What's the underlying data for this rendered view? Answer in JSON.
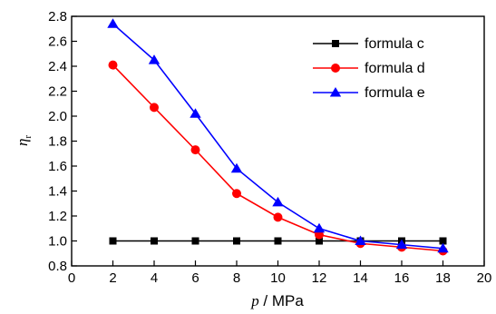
{
  "chart_data": {
    "type": "line",
    "xlabel": {
      "symbol": "p",
      "unit": " / MPa"
    },
    "ylabel": {
      "symbol": "η",
      "subscript": "r"
    },
    "xlim": [
      0,
      20
    ],
    "ylim": [
      0.8,
      2.8
    ],
    "xticks": [
      0,
      2,
      4,
      6,
      8,
      10,
      12,
      14,
      16,
      18,
      20
    ],
    "yticks": [
      "0.8",
      "1.0",
      "1.2",
      "1.4",
      "1.6",
      "1.8",
      "2.0",
      "2.2",
      "2.4",
      "2.6",
      "2.8"
    ],
    "grid": false,
    "legend_position": "top-right",
    "x": [
      2,
      4,
      6,
      8,
      10,
      12,
      14,
      16,
      18
    ],
    "series": [
      {
        "name": "formula  c",
        "color": "#000000",
        "marker": "square",
        "values": [
          1.0,
          1.0,
          1.0,
          1.0,
          1.0,
          1.0,
          1.0,
          1.0,
          1.0
        ]
      },
      {
        "name": "formula  d",
        "color": "#ff0000",
        "marker": "circle",
        "values": [
          2.41,
          2.07,
          1.73,
          1.38,
          1.19,
          1.05,
          0.98,
          0.95,
          0.92
        ]
      },
      {
        "name": "formula  e",
        "color": "#0000ff",
        "marker": "triangle",
        "values": [
          2.74,
          2.45,
          2.02,
          1.58,
          1.31,
          1.1,
          1.0,
          0.97,
          0.94
        ]
      }
    ]
  }
}
